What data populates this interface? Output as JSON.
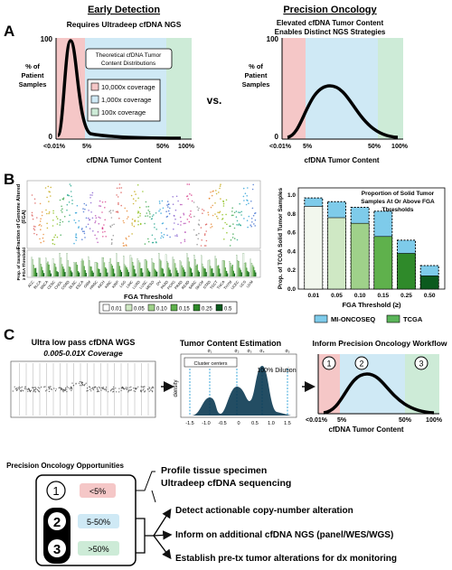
{
  "panelA": {
    "letter": "A",
    "left": {
      "header": "Early Detection",
      "subtitle": "Requires Ultradeep cfDNA NGS",
      "ylabel": [
        "% of",
        "Patient",
        "Samples"
      ],
      "ytick_top": "100",
      "ytick_bottom": "0",
      "xticks": [
        "<0.01%",
        "5%",
        "50%",
        "100%"
      ],
      "xlabel": "cfDNA Tumor Content",
      "legend_title": [
        "Theoretical cfDNA Tumor",
        "Content Distributions"
      ],
      "coverage": [
        "10,000x coverage",
        "1,000x coverage",
        "100x coverage"
      ]
    },
    "vs": "vs.",
    "right": {
      "header": "Precision Oncology",
      "subtitle": [
        "Elevated cfDNA Tumor Content",
        "Enables Distinct NGS Strategies"
      ],
      "ylabel": [
        "% of",
        "Patient",
        "Samples"
      ],
      "ytick_top": "100",
      "ytick_bottom": "0",
      "xticks": [
        "<0.01%",
        "5%",
        "50%",
        "100%"
      ],
      "xlabel": "cfDNA Tumor Content"
    }
  },
  "panelB": {
    "letter": "B",
    "left": {
      "ylabel_top": [
        "Fraction of Genome Altered",
        "(FGA)"
      ],
      "ylabel_bottom": [
        "Prop. of Samples",
        "≥ FGA Threshold"
      ],
      "cancer_types": [
        "ACC",
        "BLCA",
        "BRCA",
        "CESC",
        "CHOL",
        "COAD",
        "DLBC",
        "ESCA",
        "GBM",
        "HNSC",
        "KICH",
        "KIRC",
        "KIRP",
        "LGG",
        "LIHC",
        "LUAD",
        "LUSC",
        "MESO",
        "OV",
        "PAAD",
        "PCPG",
        "PRAD",
        "READ",
        "SARC",
        "SKCM",
        "STAD",
        "TGCT",
        "THCA",
        "THYM",
        "UCEC",
        "UCS",
        "UVM"
      ],
      "legend_title": "FGA Threshold",
      "legend": [
        "0.01",
        "0.05",
        "0.10",
        "0.15",
        "0.25",
        "0.5"
      ],
      "legend_colors": [
        "#ffffff",
        "#cfe8c4",
        "#9fd18a",
        "#5fb14c",
        "#2f8a2a",
        "#0b5a1e"
      ]
    },
    "right": {
      "ylabel": "Prop. of TCGA Solid Tumor Samples",
      "title": [
        "Proportion of Solid Tumor",
        "Samples At Or Above FGA",
        "Thresholds"
      ],
      "yticks": [
        "0.0",
        "0.2",
        "0.4",
        "0.6",
        "0.8",
        "1.0"
      ],
      "xlabel": "FGA Threshold (≥)",
      "legend": [
        "MI-ONCOSEQ",
        "TCGA"
      ],
      "legend_colors": [
        "#7ecbea",
        "#5bb55a"
      ],
      "chart_data": {
        "type": "bar",
        "categories": [
          "0.01",
          "0.05",
          "0.10",
          "0.15",
          "0.25",
          "0.50"
        ],
        "series": [
          {
            "name": "TCGA",
            "values": [
              0.88,
              0.76,
              0.7,
              0.56,
              0.38,
              0.14
            ]
          },
          {
            "name": "MI-ONCOSEQ",
            "values": [
              0.97,
              0.93,
              0.87,
              0.83,
              0.52,
              0.25
            ]
          }
        ],
        "ylim": [
          0,
          1
        ],
        "ylabel": "Prop. of TCGA Solid Tumor Samples",
        "xlabel": "FGA Threshold (≥)",
        "bar_colors": [
          "#f2f7ee",
          "#cfe8c4",
          "#9fd18a",
          "#5fb14c",
          "#2f8a2a",
          "#0b5a1e"
        ]
      }
    }
  },
  "panelC": {
    "letter": "C",
    "wgs": {
      "title": "Ultra low pass cfDNA WGS",
      "coverage": "0.005-0.01X Coverage"
    },
    "tce": {
      "title": "Tumor Content Estimation",
      "ylabel": "density",
      "xticks": [
        "-1.5",
        "-1.0",
        "-0.5",
        "0",
        "0.5",
        "1.0",
        "1.5"
      ],
      "cluster_label": "Cluster centers",
      "dilution": "100% Dilution",
      "sigmas": [
        "σ₁",
        "σ₂",
        "σ₃",
        "σ₄",
        "σ₅"
      ]
    },
    "inform": {
      "title": "Inform Precision Oncology Workflow",
      "circles": [
        "1",
        "2",
        "3"
      ],
      "xticks": [
        "<0.01%",
        "5%",
        "50%",
        "100%"
      ],
      "xlabel": "cfDNA Tumor Content"
    },
    "opportunities": {
      "title": "Precision Oncology Opportunities",
      "tiers": [
        {
          "num": "1",
          "range": "<5%",
          "color": "#f5c7c7"
        },
        {
          "num": "2",
          "range": "5-50%",
          "color": "#cfe9f5"
        },
        {
          "num": "3",
          "range": ">50%",
          "color": "#cdebd7"
        }
      ],
      "tier1_actions": [
        "Profile tissue specimen",
        "Ultradeep cfDNA sequencing"
      ],
      "tier23_actions": [
        "Detect actionable copy-number alteration",
        "Inform on additional cfDNA NGS (panel/WES/WGS)",
        "Establish pre-tx tumor alterations for dx monitoring"
      ]
    }
  },
  "colors": {
    "pink": "#f5c7c7",
    "blue": "#cfe9f5",
    "green": "#cdebd7"
  }
}
